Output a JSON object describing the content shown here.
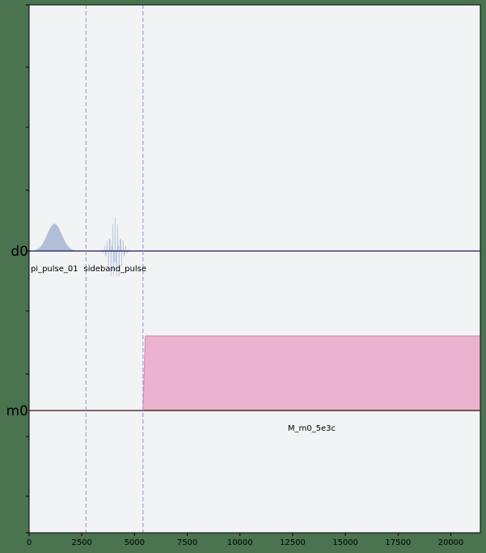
{
  "chart_data": {
    "type": "pulse_schedule",
    "title": "",
    "xlabel": "",
    "ylabel": "",
    "xlim": [
      0,
      21400
    ],
    "x_ticks": [
      0,
      2500,
      5000,
      7500,
      10000,
      12500,
      15000,
      17500,
      20000
    ],
    "x_tick_labels": [
      "0",
      "2500",
      "5000",
      "7500",
      "10000",
      "12500",
      "15000",
      "17500",
      "20000"
    ],
    "grid": false,
    "channels": [
      {
        "name": "d0",
        "color": "#1b1b55"
      },
      {
        "name": "m0",
        "color": "#3a0b0b"
      }
    ],
    "barriers_x": [
      2700,
      5400
    ],
    "pulses": [
      {
        "channel": "d0",
        "label": "pi_pulse_01",
        "start": 160,
        "end": 2240,
        "shape": "gaussian",
        "amplitude": 0.48,
        "color": "#b8c4de"
      },
      {
        "channel": "d0",
        "label": "sideband_pulse",
        "start": 3300,
        "end": 4850,
        "shape": "modulated_gaussian",
        "amplitude": 0.6,
        "color": "#b8c4de"
      },
      {
        "channel": "m0",
        "label": "M_m0_5e3c",
        "start": 5400,
        "end": 21400,
        "shape": "square",
        "amplitude": 1.0,
        "color": "#ebb3d0"
      }
    ]
  },
  "colors": {
    "plot_background": "#f2f3f5",
    "page_background": "#4a7350",
    "barrier": "#9ea3c7"
  }
}
